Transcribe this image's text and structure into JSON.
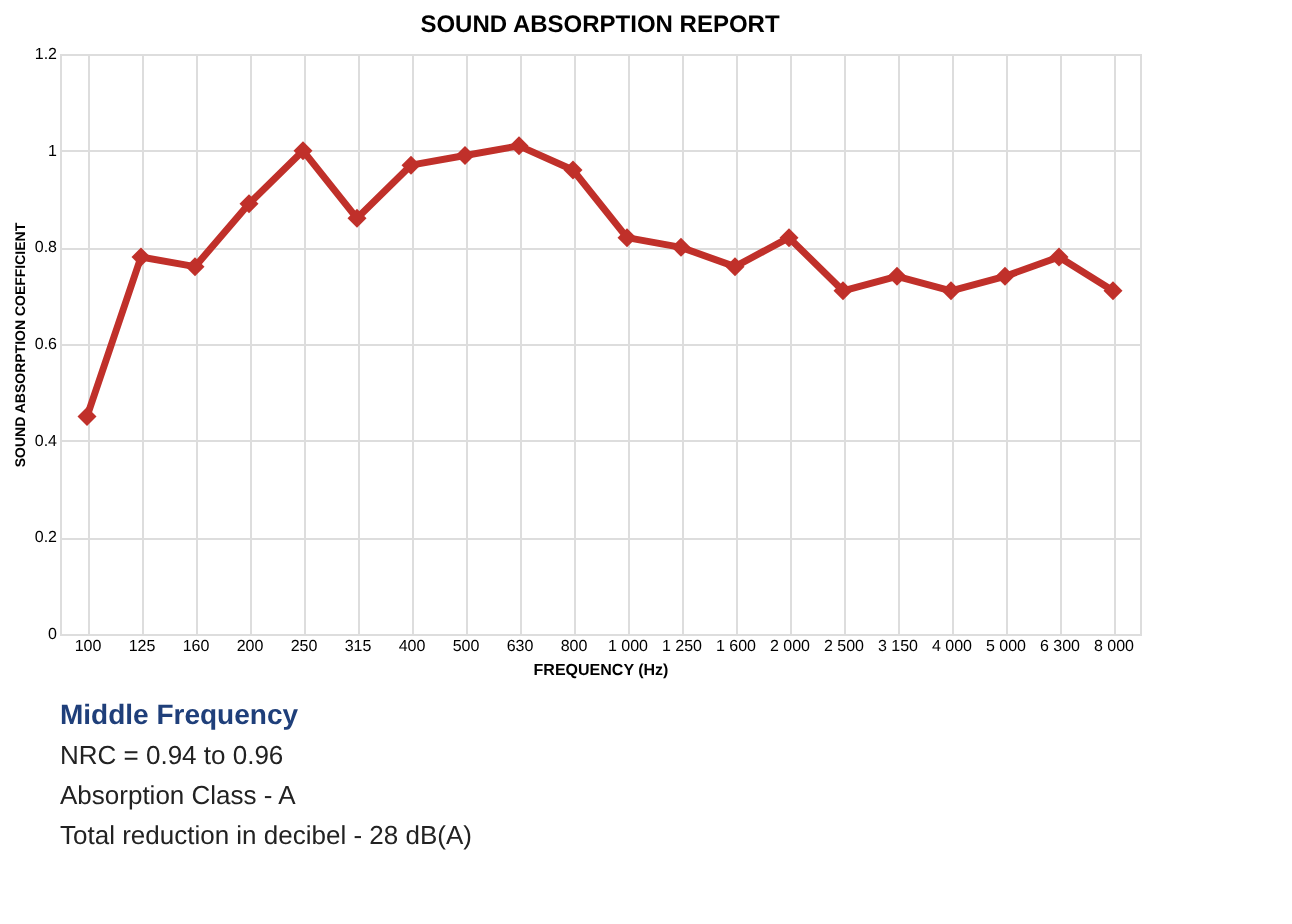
{
  "chart_data": {
    "type": "line",
    "title": "SOUND ABSORPTION REPORT",
    "xlabel": "FREQUENCY (Hz)",
    "ylabel": "SOUND ABSORPTION COEFFICIENT",
    "categories": [
      "100",
      "125",
      "160",
      "200",
      "250",
      "315",
      "400",
      "500",
      "630",
      "800",
      "1 000",
      "1 250",
      "1 600",
      "2 000",
      "2 500",
      "3 150",
      "4 000",
      "5 000",
      "6 300",
      "8 000"
    ],
    "series": [
      {
        "color": "#c0302a",
        "values": [
          0.45,
          0.78,
          0.76,
          0.89,
          1.0,
          0.86,
          0.97,
          0.99,
          1.01,
          0.96,
          0.82,
          0.8,
          0.76,
          0.82,
          0.71,
          0.74,
          0.71,
          0.74,
          0.78,
          0.71
        ]
      }
    ],
    "ylim": [
      0,
      1.2
    ],
    "yticks": [
      0,
      0.2,
      0.4,
      0.6,
      0.8,
      1,
      1.2
    ],
    "grid": true,
    "marker": "diamond",
    "line_style": "solid",
    "legend": false,
    "annotations": [
      "Middle Frequency",
      "NRC = 0.94 to 0.96",
      "Absorption Class - A",
      "Total reduction in decibel - 28 dB(A)"
    ]
  }
}
